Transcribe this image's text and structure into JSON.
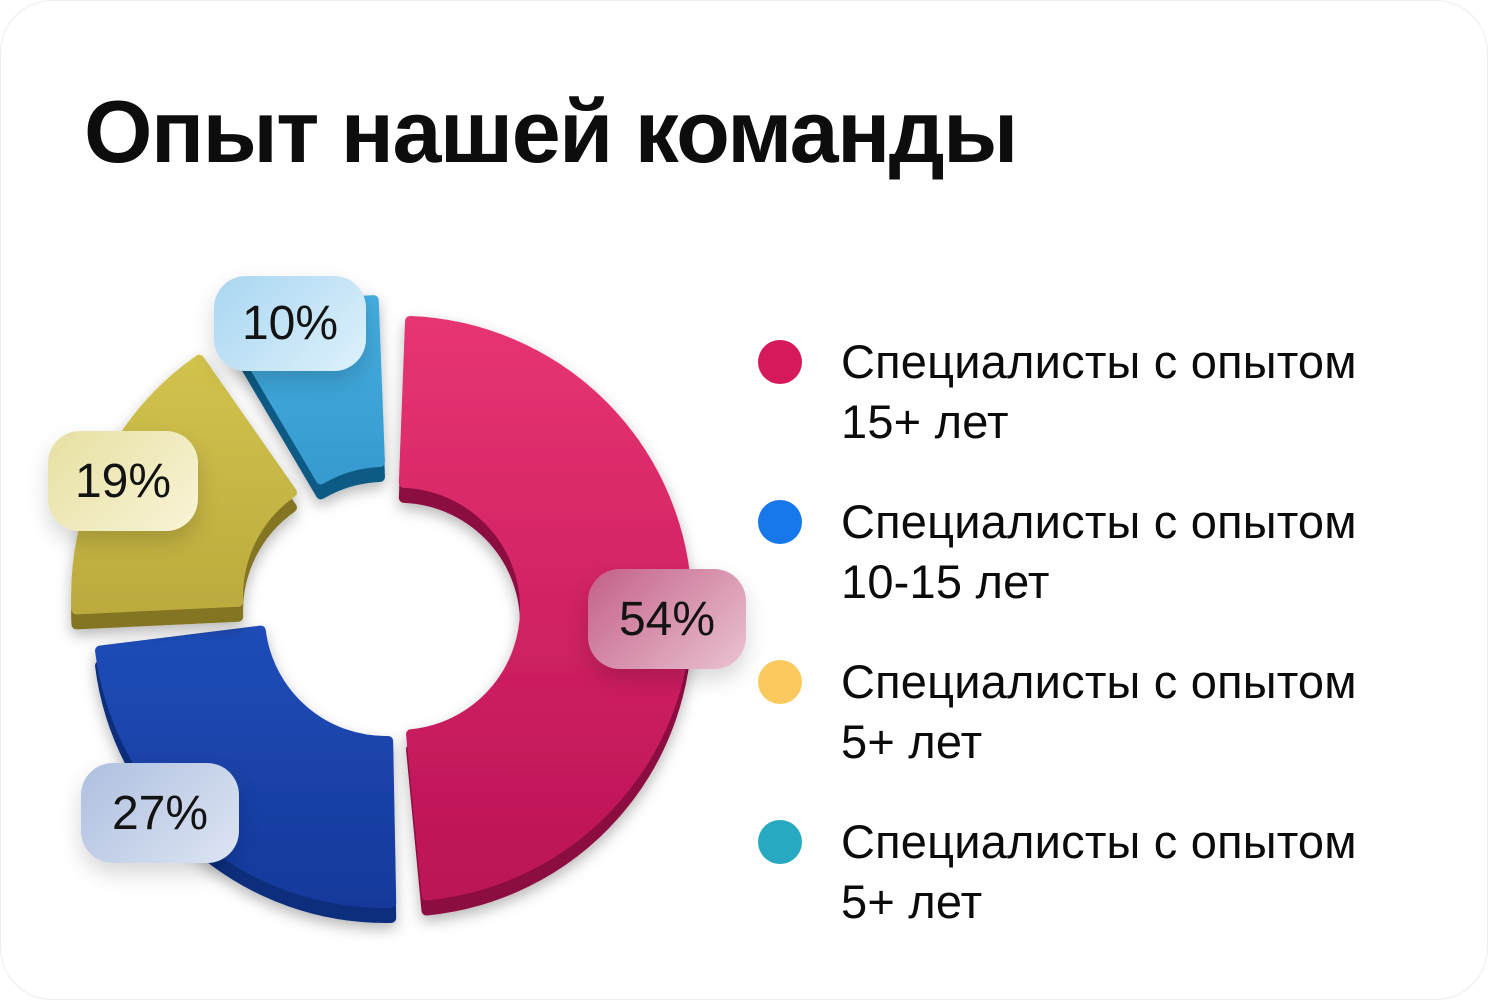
{
  "title": "Опыт нашей команды",
  "chart_data": {
    "type": "pie",
    "variant": "exploded 3D donut",
    "title": "Опыт нашей команды",
    "unit": "%",
    "legend_position": "right",
    "values": [
      54,
      27,
      19,
      10
    ],
    "segments": [
      {
        "label": "Специалисты с опытом 15+ лет",
        "label_line1": "Специалисты с опытом",
        "label_line2": "15+ лет",
        "value_pct": 54,
        "value_label": "54%",
        "color_top": "#e73473",
        "color_bottom": "#bb1255",
        "color_side": "#8c0d40",
        "legend_dot_color": "#d6195c",
        "bubble_gradient_from": "#c36088",
        "bubble_gradient_to": "#eac3d2"
      },
      {
        "label": "Специалисты с опытом 10-15 лет",
        "label_line1": "Специалисты с опытом",
        "label_line2": "10-15 лет",
        "value_pct": 27,
        "value_label": "27%",
        "color_top": "#2b62d5",
        "color_bottom": "#15399c",
        "color_side": "#0e2f7d",
        "legend_dot_color": "#1778ec",
        "bubble_gradient_from": "#aebfdf",
        "bubble_gradient_to": "#dde5f3"
      },
      {
        "label": "Специалисты с опытом 5+ лет",
        "label_line1": "Специалисты с опытом",
        "label_line2": "5+ лет",
        "value_pct": 19,
        "value_label": "19%",
        "color_top": "#d6c750",
        "color_bottom": "#a3922e",
        "color_side": "#837521",
        "legend_dot_color": "#fbc95e",
        "bubble_gradient_from": "#e7e0a2",
        "bubble_gradient_to": "#f8f4d7"
      },
      {
        "label": "Специалисты с опытом 5+ лет",
        "label_line1": "Специалисты с опытом",
        "label_line2": "5+ лет",
        "value_pct": 10,
        "value_label": "10%",
        "color_top": "#45ade0",
        "color_bottom": "#1673a7",
        "color_side": "#0f5a84",
        "legend_dot_color": "#27a9c2",
        "bubble_gradient_from": "#a9d6f1",
        "bubble_gradient_to": "#def1fc"
      }
    ]
  }
}
